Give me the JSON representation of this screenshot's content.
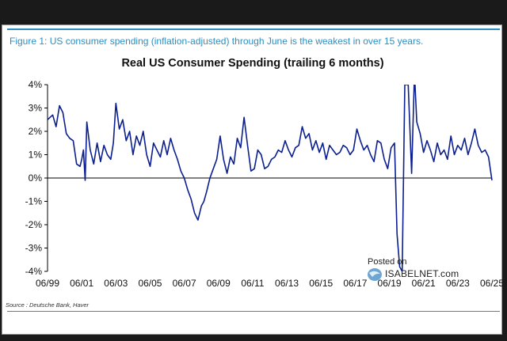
{
  "figure_caption": "Figure 1: US consumer spending (inflation-adjusted) through June is the weakest in over 15 years.",
  "source": "Source : Deutsche Bank, Haver",
  "watermark": {
    "posted": "Posted on",
    "site": "ISABELNET.com"
  },
  "colors": {
    "accent": "#2c8fc1",
    "series": "#0b1f8f"
  },
  "chart_data": {
    "type": "line",
    "title": "Real US Consumer Spending (trailing 6 months)",
    "xlabel": "",
    "ylabel": "",
    "ylim": [
      -4,
      4
    ],
    "yticks": [
      4,
      3,
      2,
      1,
      0,
      -1,
      -2,
      -3,
      -4
    ],
    "ytick_labels": [
      "4%",
      "3%",
      "2%",
      "1%",
      "0%",
      "-1%",
      "-2%",
      "-3%",
      "-4%"
    ],
    "xlim": [
      1999.5,
      2025.5
    ],
    "xticks": [
      1999.5,
      2001.5,
      2003.5,
      2005.5,
      2007.5,
      2009.5,
      2011.5,
      2013.5,
      2015.5,
      2017.5,
      2019.5,
      2021.5,
      2023.5,
      2025.5
    ],
    "xtick_labels": [
      "06/99",
      "06/01",
      "06/03",
      "06/05",
      "06/07",
      "06/09",
      "06/11",
      "06/13",
      "06/15",
      "06/17",
      "06/19",
      "06/21",
      "06/23",
      "06/25"
    ],
    "grid": false,
    "series": [
      {
        "name": "Real US Consumer Spending",
        "x": [
          1999.5,
          1999.8,
          2000.0,
          2000.2,
          2000.4,
          2000.6,
          2000.8,
          2001.0,
          2001.2,
          2001.4,
          2001.5,
          2001.6,
          2001.7,
          2001.8,
          2002.0,
          2002.2,
          2002.4,
          2002.6,
          2002.8,
          2003.0,
          2003.2,
          2003.35,
          2003.5,
          2003.7,
          2003.9,
          2004.1,
          2004.3,
          2004.5,
          2004.7,
          2004.9,
          2005.1,
          2005.3,
          2005.5,
          2005.7,
          2005.9,
          2006.1,
          2006.3,
          2006.5,
          2006.7,
          2006.9,
          2007.1,
          2007.3,
          2007.5,
          2007.7,
          2007.9,
          2008.1,
          2008.3,
          2008.5,
          2008.65,
          2008.8,
          2009.0,
          2009.2,
          2009.4,
          2009.6,
          2009.8,
          2010.0,
          2010.2,
          2010.4,
          2010.6,
          2010.8,
          2011.0,
          2011.2,
          2011.4,
          2011.6,
          2011.8,
          2012.0,
          2012.2,
          2012.4,
          2012.6,
          2012.8,
          2013.0,
          2013.2,
          2013.4,
          2013.6,
          2013.8,
          2014.0,
          2014.2,
          2014.4,
          2014.6,
          2014.8,
          2015.0,
          2015.2,
          2015.4,
          2015.6,
          2015.8,
          2016.0,
          2016.2,
          2016.4,
          2016.6,
          2016.8,
          2017.0,
          2017.2,
          2017.4,
          2017.6,
          2017.8,
          2018.0,
          2018.2,
          2018.4,
          2018.6,
          2018.8,
          2019.0,
          2019.2,
          2019.4,
          2019.6,
          2019.8,
          2019.95,
          2020.1,
          2020.25,
          2020.4,
          2020.6,
          2020.8,
          2020.95,
          2021.0,
          2021.1,
          2021.3,
          2021.5,
          2021.7,
          2021.9,
          2022.1,
          2022.3,
          2022.5,
          2022.7,
          2022.9,
          2023.1,
          2023.3,
          2023.5,
          2023.7,
          2023.9,
          2024.1,
          2024.3,
          2024.5,
          2024.7,
          2024.9,
          2025.1,
          2025.3,
          2025.5
        ],
        "values": [
          2.5,
          2.7,
          2.2,
          3.1,
          2.8,
          1.9,
          1.7,
          1.6,
          0.6,
          0.5,
          0.8,
          1.2,
          -0.1,
          2.4,
          1.2,
          0.6,
          1.5,
          0.7,
          1.4,
          1.0,
          0.8,
          1.5,
          3.2,
          2.1,
          2.5,
          1.6,
          2.0,
          1.0,
          1.8,
          1.4,
          2.0,
          1.0,
          0.5,
          1.5,
          1.2,
          0.9,
          1.6,
          1.0,
          1.7,
          1.2,
          0.8,
          0.3,
          0.0,
          -0.5,
          -0.9,
          -1.5,
          -1.8,
          -1.2,
          -1.0,
          -0.6,
          0.0,
          0.4,
          0.8,
          1.8,
          0.8,
          0.2,
          0.9,
          0.6,
          1.7,
          1.3,
          2.6,
          1.4,
          0.3,
          0.4,
          1.2,
          1.0,
          0.4,
          0.5,
          0.8,
          0.9,
          1.2,
          1.1,
          1.6,
          1.2,
          0.9,
          1.3,
          1.4,
          2.2,
          1.7,
          1.9,
          1.2,
          1.6,
          1.1,
          1.5,
          0.8,
          1.4,
          1.2,
          1.0,
          1.1,
          1.4,
          1.3,
          1.0,
          1.2,
          2.1,
          1.6,
          1.2,
          1.4,
          1.0,
          0.7,
          1.6,
          1.5,
          0.8,
          0.4,
          1.3,
          1.5,
          -2.4,
          -3.8,
          -4.0,
          4.0,
          4.0,
          0.2,
          4.0,
          4.0,
          2.4,
          1.9,
          1.1,
          1.6,
          1.2,
          0.7,
          1.5,
          1.0,
          1.2,
          0.8,
          1.8,
          1.0,
          1.4,
          1.2,
          1.7,
          1.0,
          1.5,
          2.1,
          1.4,
          1.1,
          1.2,
          0.9,
          -0.1
        ]
      }
    ]
  }
}
